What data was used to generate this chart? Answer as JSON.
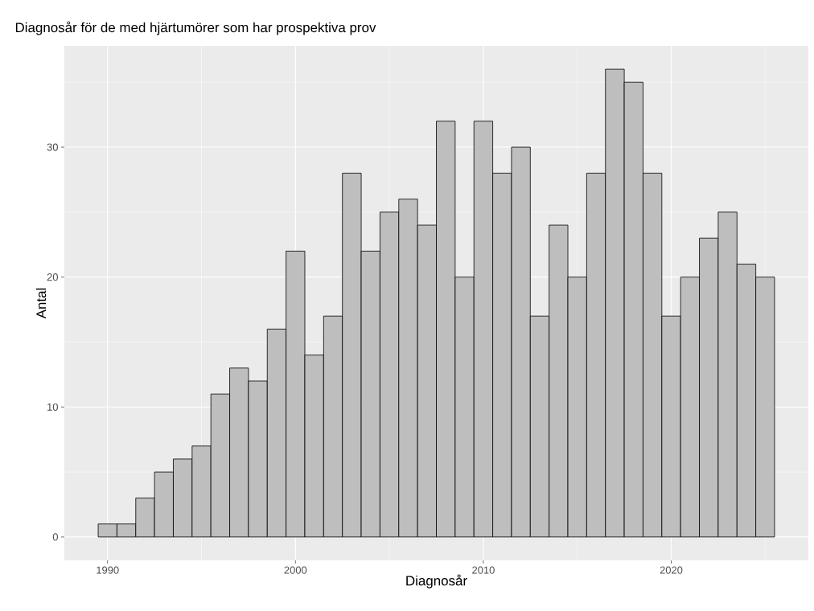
{
  "chart_data": {
    "type": "histogram",
    "title": "Diagnosår för de med hjärtumörer som har prospektiva prov",
    "xlabel": "Diagnosår",
    "ylabel": "Antal",
    "bins": [
      1989.5,
      1990.5,
      1991.5,
      1992.5,
      1993.5,
      1994.5,
      1995.5,
      1996.5,
      1997.5,
      1998.5,
      1999.5,
      2000.5,
      2001.5,
      2002.5,
      2003.5,
      2004.5,
      2005.5,
      2006.5,
      2007.5,
      2008.5,
      2009.5,
      2010.5,
      2011.5,
      2012.5,
      2013.5,
      2014.5,
      2015.5,
      2016.5,
      2017.5,
      2018.5,
      2019.5,
      2020.5,
      2021.5,
      2022.5,
      2023.5,
      2024.5,
      2025.5
    ],
    "values": [
      1,
      1,
      3,
      5,
      6,
      7,
      11,
      13,
      12,
      16,
      22,
      14,
      17,
      28,
      22,
      25,
      26,
      24,
      32,
      20,
      32,
      28,
      30,
      17,
      24,
      20,
      28,
      36,
      35,
      28,
      17,
      20,
      23,
      25,
      21,
      20
    ],
    "color": "#bebebe",
    "xlim": [
      1987.7,
      2027.3
    ],
    "ylim": [
      -1.8,
      37.8
    ],
    "xticks": [
      1990,
      2000,
      2010,
      2020
    ],
    "yticks": [
      0,
      10,
      20,
      30
    ],
    "grid": true
  }
}
